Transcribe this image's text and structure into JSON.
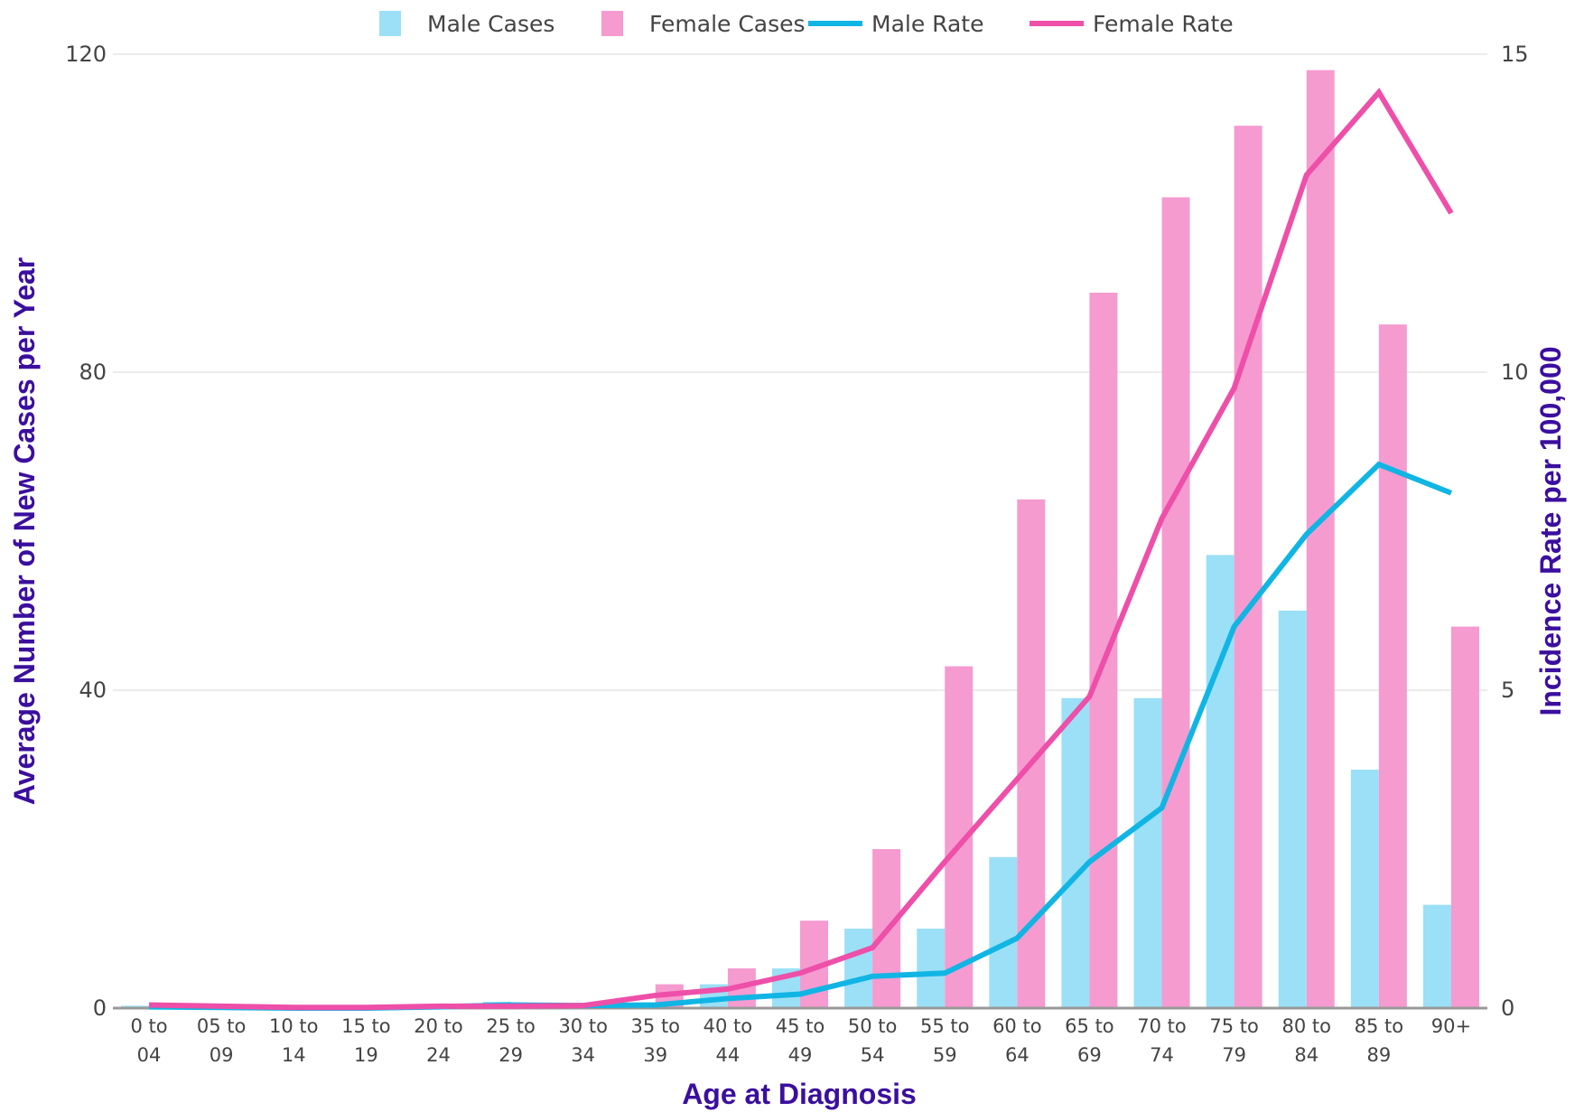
{
  "chart_data": {
    "type": "bar",
    "categories": [
      [
        "0 to",
        "04"
      ],
      [
        "05 to",
        "09"
      ],
      [
        "10 to",
        "14"
      ],
      [
        "15 to",
        "19"
      ],
      [
        "20 to",
        "24"
      ],
      [
        "25 to",
        "29"
      ],
      [
        "30 to",
        "34"
      ],
      [
        "35 to",
        "39"
      ],
      [
        "40 to",
        "44"
      ],
      [
        "45 to",
        "49"
      ],
      [
        "50 to",
        "54"
      ],
      [
        "55 to",
        "59"
      ],
      [
        "60 to",
        "64"
      ],
      [
        "65 to",
        "69"
      ],
      [
        "70 to",
        "74"
      ],
      [
        "75 to",
        "79"
      ],
      [
        "80 to",
        "84"
      ],
      [
        "85 to",
        "89"
      ],
      [
        "90+",
        ""
      ]
    ],
    "bar_series": [
      {
        "name": "Male Cases",
        "color": "#9be0f6",
        "values": [
          0.3,
          0,
          0,
          0,
          0.3,
          0.8,
          0.5,
          0.6,
          3,
          5,
          10,
          10,
          19,
          39,
          39,
          57,
          50,
          30,
          13
        ]
      },
      {
        "name": "Female Cases",
        "color": "#f59bd0",
        "values": [
          0.6,
          0.3,
          0,
          0,
          0.5,
          0.5,
          0.5,
          3,
          5,
          11,
          20,
          43,
          64,
          90,
          102,
          111,
          118,
          86,
          48
        ]
      }
    ],
    "line_series": [
      {
        "name": "Male Rate",
        "color": "#11b5e4",
        "values": [
          0.02,
          0.01,
          0,
          0,
          0.02,
          0.05,
          0.04,
          0.05,
          0.15,
          0.22,
          0.5,
          0.55,
          1.1,
          2.3,
          3.15,
          6,
          7.45,
          8.55,
          8.1
        ]
      },
      {
        "name": "Female Rate",
        "color": "#ee4fa8",
        "values": [
          0.05,
          0.03,
          0.01,
          0.01,
          0.03,
          0.03,
          0.04,
          0.2,
          0.3,
          0.55,
          0.95,
          2.3,
          3.6,
          4.9,
          7.7,
          9.75,
          13.1,
          14.4,
          12.5
        ]
      }
    ],
    "y_left": {
      "label": "Average Number of New Cases per Year",
      "ticks": [
        0,
        40,
        80,
        120
      ],
      "range": [
        0,
        120
      ]
    },
    "y_right": {
      "label": "Incidence Rate per 100,000",
      "ticks": [
        0,
        5,
        10,
        15
      ],
      "range": [
        0,
        15
      ]
    },
    "xlabel": "Age at Diagnosis",
    "legend_position": "top-center",
    "grid": true,
    "colors": {
      "axis_title": "#3b0f9e",
      "grid": "#e6e6e6",
      "axis_line": "#999999"
    }
  }
}
